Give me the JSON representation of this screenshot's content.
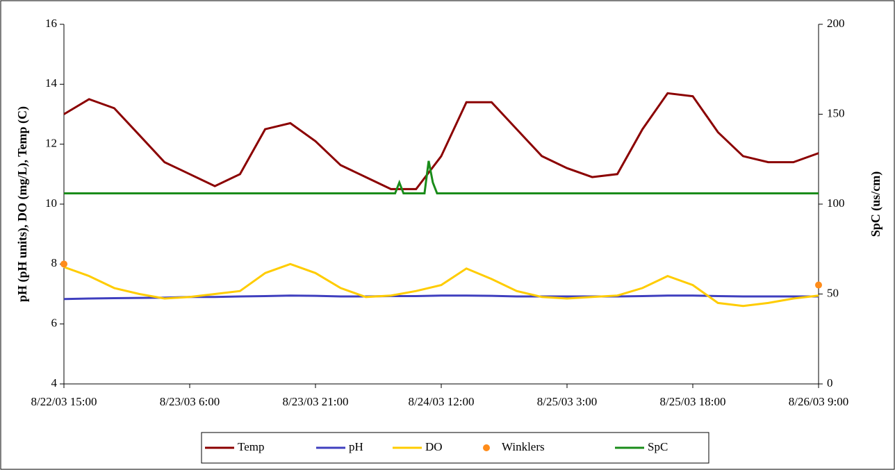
{
  "chart_data": {
    "type": "line",
    "y_label": "pH (pH units), DO (mg/L), Temp (C)",
    "y2_label": "SpC (us/cm)",
    "x": [
      "2003-08-22T15:00",
      "2003-08-22T18:00",
      "2003-08-22T21:00",
      "2003-08-23T00:00",
      "2003-08-23T03:00",
      "2003-08-23T06:00",
      "2003-08-23T09:00",
      "2003-08-23T12:00",
      "2003-08-23T15:00",
      "2003-08-23T18:00",
      "2003-08-23T21:00",
      "2003-08-24T00:00",
      "2003-08-24T03:00",
      "2003-08-24T06:00",
      "2003-08-24T09:00",
      "2003-08-24T12:00",
      "2003-08-24T15:00",
      "2003-08-24T18:00",
      "2003-08-24T21:00",
      "2003-08-25T00:00",
      "2003-08-25T03:00",
      "2003-08-25T06:00",
      "2003-08-25T09:00",
      "2003-08-25T12:00",
      "2003-08-25T15:00",
      "2003-08-25T18:00",
      "2003-08-25T21:00",
      "2003-08-26T00:00",
      "2003-08-26T03:00",
      "2003-08-26T06:00",
      "2003-08-26T09:00"
    ],
    "xlim": [
      "2003-08-22T15:00",
      "2003-08-26T09:00"
    ],
    "xticks": [
      {
        "value": "2003-08-22T15:00",
        "label": "8/22/03 15:00"
      },
      {
        "value": "2003-08-23T06:00",
        "label": "8/23/03 6:00"
      },
      {
        "value": "2003-08-23T21:00",
        "label": "8/23/03 21:00"
      },
      {
        "value": "2003-08-24T12:00",
        "label": "8/24/03 12:00"
      },
      {
        "value": "2003-08-25T03:00",
        "label": "8/25/03 3:00"
      },
      {
        "value": "2003-08-25T18:00",
        "label": "8/25/03 18:00"
      },
      {
        "value": "2003-08-26T09:00",
        "label": "8/26/03 9:00"
      }
    ],
    "ylim": [
      4,
      16
    ],
    "yticks": [
      4,
      6,
      8,
      10,
      12,
      14,
      16
    ],
    "y2lim": [
      0,
      200
    ],
    "y2ticks": [
      0,
      50,
      100,
      150,
      200
    ],
    "legend": "bottom",
    "series": [
      {
        "name": "Temp",
        "color": "#8b0000",
        "values": [
          13.0,
          13.5,
          13.2,
          12.3,
          11.4,
          11.0,
          10.6,
          11.0,
          12.5,
          12.7,
          12.1,
          11.3,
          10.9,
          10.5,
          10.5,
          11.6,
          13.4,
          13.4,
          12.5,
          11.6,
          11.2,
          10.9,
          11.0,
          12.5,
          13.7,
          13.6,
          12.4,
          11.6,
          11.4,
          11.4,
          11.7
        ]
      },
      {
        "name": "pH",
        "color": "#3f3fbf",
        "values": [
          6.83,
          6.85,
          6.86,
          6.87,
          6.88,
          6.9,
          6.9,
          6.92,
          6.93,
          6.95,
          6.94,
          6.92,
          6.92,
          6.93,
          6.93,
          6.95,
          6.95,
          6.94,
          6.92,
          6.92,
          6.92,
          6.92,
          6.92,
          6.93,
          6.95,
          6.95,
          6.93,
          6.92,
          6.92,
          6.92,
          6.92
        ]
      },
      {
        "name": "DO",
        "color": "#ffcc00",
        "values": [
          7.9,
          7.6,
          7.2,
          7.0,
          6.85,
          6.9,
          7.0,
          7.1,
          7.7,
          8.0,
          7.7,
          7.2,
          6.9,
          6.95,
          7.1,
          7.3,
          7.85,
          7.5,
          7.1,
          6.9,
          6.85,
          6.9,
          6.95,
          7.2,
          7.6,
          7.3,
          6.7,
          6.6,
          6.7,
          6.85,
          6.95
        ]
      },
      {
        "name": "Winklers",
        "type": "scatter",
        "color": "#ff8c1a",
        "x": [
          "2003-08-22T15:00",
          "2003-08-26T09:00"
        ],
        "values": [
          8.0,
          7.3
        ]
      },
      {
        "name": "SpC",
        "color": "#1a8c1a",
        "axis": "y2",
        "x": [
          "2003-08-22T15:00",
          "2003-08-23T01:00",
          "2003-08-23T11:00",
          "2003-08-23T21:00",
          "2003-08-24T05:00",
          "2003-08-24T06:30",
          "2003-08-24T07:00",
          "2003-08-24T07:30",
          "2003-08-24T08:00",
          "2003-08-24T09:00",
          "2003-08-24T10:00",
          "2003-08-24T10:30",
          "2003-08-24T11:00",
          "2003-08-24T11:30",
          "2003-08-24T12:00",
          "2003-08-24T13:00",
          "2003-08-24T22:00",
          "2003-08-25T13:00",
          "2003-08-26T09:00"
        ],
        "values": [
          106,
          106,
          106,
          106,
          106,
          106,
          112,
          106,
          106,
          106,
          106,
          124,
          112,
          106,
          106,
          106,
          106,
          106,
          106
        ]
      }
    ]
  }
}
